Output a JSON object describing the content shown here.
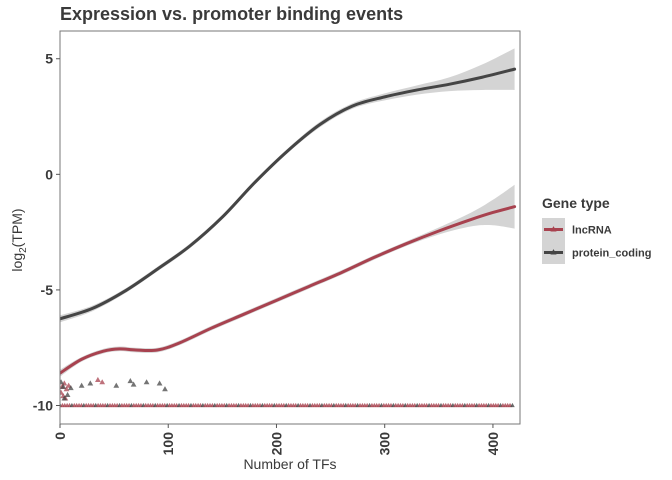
{
  "chart_data": {
    "type": "line",
    "title": "Expression vs. promoter binding events",
    "xlabel": "Number of TFs",
    "ylabel_main": "log",
    "ylabel_sub": "2",
    "ylabel_rest": "(TPM)",
    "xlim": [
      0,
      425
    ],
    "ylim": [
      -10.8,
      6.2
    ],
    "xticks": [
      0,
      100,
      200,
      300,
      400
    ],
    "xtick_labels": [
      "0",
      "100",
      "200",
      "300",
      "400"
    ],
    "yticks": [
      5,
      0,
      -5,
      -10
    ],
    "ytick_labels": [
      "5",
      "0",
      "-5",
      "-10"
    ],
    "grid": false,
    "legend": {
      "title": "Gene type",
      "position": "right",
      "entries": [
        "lncRNA",
        "protein_coding"
      ]
    },
    "colors": {
      "lncRNA": "#a8424f",
      "protein_coding": "#454545",
      "band": "#cccccc",
      "legend_key_bg": "#d4d4d4",
      "panel_border": "#777777"
    },
    "series": [
      {
        "name": "lncRNA",
        "x": [
          0,
          20,
          40,
          55,
          70,
          90,
          110,
          140,
          170,
          200,
          230,
          260,
          290,
          320,
          350,
          380,
          400,
          420
        ],
        "y": [
          -8.6,
          -8.0,
          -7.65,
          -7.55,
          -7.6,
          -7.6,
          -7.3,
          -6.65,
          -6.05,
          -5.45,
          -4.85,
          -4.25,
          -3.6,
          -3.0,
          -2.45,
          -1.95,
          -1.65,
          -1.4
        ],
        "se_upper": [
          -8.45,
          -7.9,
          -7.55,
          -7.45,
          -7.5,
          -7.5,
          -7.2,
          -6.55,
          -5.95,
          -5.35,
          -4.75,
          -4.15,
          -3.5,
          -2.9,
          -2.3,
          -1.65,
          -1.1,
          -0.45
        ],
        "se_lower": [
          -8.75,
          -8.1,
          -7.75,
          -7.65,
          -7.7,
          -7.7,
          -7.4,
          -6.75,
          -6.15,
          -5.55,
          -4.95,
          -4.35,
          -3.7,
          -3.1,
          -2.6,
          -2.25,
          -2.2,
          -2.35
        ]
      },
      {
        "name": "protein_coding",
        "x": [
          0,
          30,
          60,
          90,
          120,
          150,
          180,
          210,
          240,
          270,
          300,
          330,
          360,
          390,
          420
        ],
        "y": [
          -6.25,
          -5.8,
          -5.05,
          -4.1,
          -3.1,
          -1.85,
          -0.35,
          1.0,
          2.15,
          2.95,
          3.35,
          3.65,
          3.9,
          4.2,
          4.55
        ],
        "se_upper": [
          -6.1,
          -5.68,
          -4.95,
          -4.0,
          -3.0,
          -1.75,
          -0.25,
          1.1,
          2.27,
          3.07,
          3.5,
          3.85,
          4.2,
          4.75,
          5.45
        ],
        "se_lower": [
          -6.4,
          -5.92,
          -5.15,
          -4.2,
          -3.2,
          -1.95,
          -0.45,
          0.9,
          2.03,
          2.83,
          3.2,
          3.45,
          3.6,
          3.65,
          3.65
        ]
      }
    ],
    "scatter_points": [
      {
        "series": "lncRNA",
        "x": 2,
        "y": -9.2
      },
      {
        "series": "lncRNA",
        "x": 4,
        "y": -9.05
      },
      {
        "series": "lncRNA",
        "x": 6,
        "y": -9.3
      },
      {
        "series": "lncRNA",
        "x": 1,
        "y": -9.45
      },
      {
        "series": "lncRNA",
        "x": 8,
        "y": -9.15
      },
      {
        "series": "lncRNA",
        "x": 3,
        "y": -9.6
      },
      {
        "series": "lncRNA",
        "x": 35,
        "y": -8.9
      },
      {
        "series": "lncRNA",
        "x": 39,
        "y": -9.0
      },
      {
        "series": "lncRNA",
        "x": 5,
        "y": -9.7
      },
      {
        "series": "protein_coding",
        "x": 1,
        "y": -9.0
      },
      {
        "series": "protein_coding",
        "x": 3,
        "y": -9.2
      },
      {
        "series": "protein_coding",
        "x": 10,
        "y": -9.25
      },
      {
        "series": "protein_coding",
        "x": 20,
        "y": -9.15
      },
      {
        "series": "protein_coding",
        "x": 28,
        "y": -9.05
      },
      {
        "series": "protein_coding",
        "x": 52,
        "y": -9.15
      },
      {
        "series": "protein_coding",
        "x": 65,
        "y": -8.95
      },
      {
        "series": "protein_coding",
        "x": 68,
        "y": -9.1
      },
      {
        "series": "protein_coding",
        "x": 80,
        "y": -9.0
      },
      {
        "series": "protein_coding",
        "x": 92,
        "y": -9.05
      },
      {
        "series": "protein_coding",
        "x": 97,
        "y": -9.3
      },
      {
        "series": "protein_coding",
        "x": 7,
        "y": -9.55
      },
      {
        "series": "protein_coding",
        "x": 4,
        "y": -9.7
      }
    ],
    "baseline_strip": {
      "y": -10,
      "x_from": 0,
      "x_to": 418,
      "series": [
        "lncRNA",
        "protein_coding"
      ]
    }
  }
}
